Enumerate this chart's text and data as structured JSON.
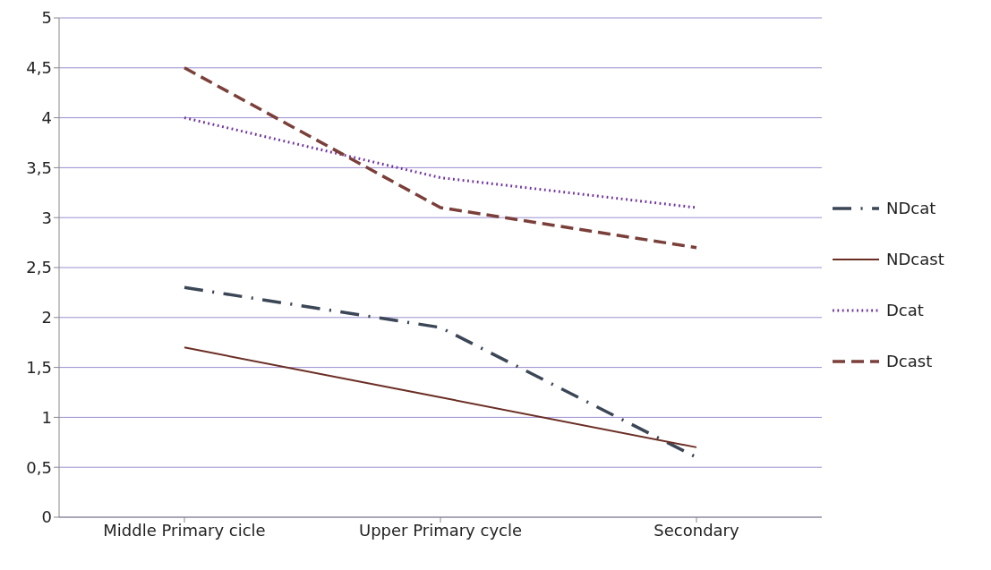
{
  "chart_data": {
    "type": "line",
    "categories": [
      "Middle Primary cicle",
      "Upper Primary cycle",
      "Secondary"
    ],
    "series": [
      {
        "name": "NDcat",
        "color": "#3b4656",
        "line_style": "dashdot",
        "values": [
          2.3,
          1.9,
          0.6
        ]
      },
      {
        "name": "NDcast",
        "color": "#6b2e24",
        "line_style": "solid",
        "values": [
          1.7,
          1.2,
          0.7
        ]
      },
      {
        "name": "Dcat",
        "color": "#7030a0",
        "line_style": "dotted",
        "values": [
          4.0,
          3.4,
          3.1
        ]
      },
      {
        "name": "Dcast",
        "color": "#7b3f3a",
        "line_style": "dashed",
        "values": [
          4.5,
          3.1,
          2.7
        ]
      }
    ],
    "ylim": [
      0,
      5
    ],
    "yticks": [
      0,
      {
        "value": 0.5,
        "label": "0,5"
      },
      1,
      {
        "value": 1.5,
        "label": "1,5"
      },
      2,
      {
        "value": 2.5,
        "label": "2,5"
      },
      3,
      {
        "value": 3.5,
        "label": "3,5"
      },
      4,
      {
        "value": 4.5,
        "label": "4,5"
      },
      5
    ],
    "grid": "y",
    "legend": "right",
    "marker": "none"
  }
}
